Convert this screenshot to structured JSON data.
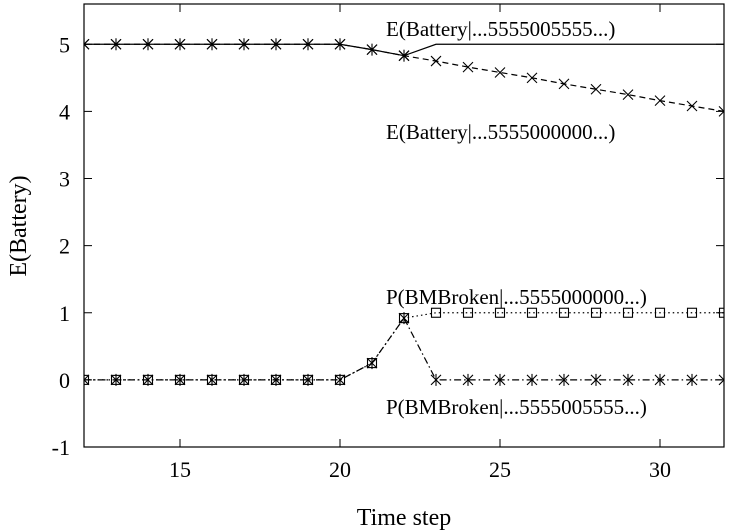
{
  "chart_data": {
    "type": "line",
    "title": "",
    "xlabel": "Time step",
    "ylabel": "E(Battery)",
    "xlim": [
      12,
      32
    ],
    "ylim": [
      -1,
      5.6
    ],
    "xticks": [
      15,
      20,
      25,
      30
    ],
    "yticks": [
      -1,
      0,
      1,
      2,
      3,
      4,
      5
    ],
    "grid": false,
    "series": [
      {
        "name": "E(Battery|...5555005555...)",
        "style": "solid",
        "marker": "star",
        "markers_through": 22,
        "x": [
          12,
          13,
          14,
          15,
          16,
          17,
          18,
          19,
          20,
          21,
          22,
          23,
          24,
          25,
          26,
          27,
          28,
          29,
          30,
          31,
          32
        ],
        "y": [
          5,
          5,
          5,
          5,
          5,
          5,
          5,
          5,
          5,
          4.92,
          4.83,
          5,
          5,
          5,
          5,
          5,
          5,
          5,
          5,
          5,
          5
        ]
      },
      {
        "name": "E(Battery|...5555000000...)",
        "style": "dashed",
        "marker": "x",
        "x": [
          12,
          13,
          14,
          15,
          16,
          17,
          18,
          19,
          20,
          21,
          22,
          23,
          24,
          25,
          26,
          27,
          28,
          29,
          30,
          31,
          32
        ],
        "y": [
          5,
          5,
          5,
          5,
          5,
          5,
          5,
          5,
          5,
          4.92,
          4.83,
          4.75,
          4.66,
          4.58,
          4.5,
          4.41,
          4.33,
          4.25,
          4.16,
          4.08,
          4.0
        ]
      },
      {
        "name": "P(BMBroken|...5555000000...)",
        "style": "dotted",
        "marker": "square",
        "x": [
          12,
          13,
          14,
          15,
          16,
          17,
          18,
          19,
          20,
          21,
          22,
          23,
          24,
          25,
          26,
          27,
          28,
          29,
          30,
          31,
          32
        ],
        "y": [
          0,
          0,
          0,
          0,
          0,
          0,
          0,
          0,
          0,
          0.25,
          0.92,
          1,
          1,
          1,
          1,
          1,
          1,
          1,
          1,
          1,
          1
        ]
      },
      {
        "name": "P(BMBroken|...5555005555...)",
        "style": "dashdot",
        "marker": "star",
        "x": [
          12,
          13,
          14,
          15,
          16,
          17,
          18,
          19,
          20,
          21,
          22,
          23,
          24,
          25,
          26,
          27,
          28,
          29,
          30,
          31,
          32
        ],
        "y": [
          0,
          0,
          0,
          0,
          0,
          0,
          0,
          0,
          0,
          0.25,
          0.92,
          0,
          0,
          0,
          0,
          0,
          0,
          0,
          0,
          0,
          0
        ]
      }
    ]
  }
}
